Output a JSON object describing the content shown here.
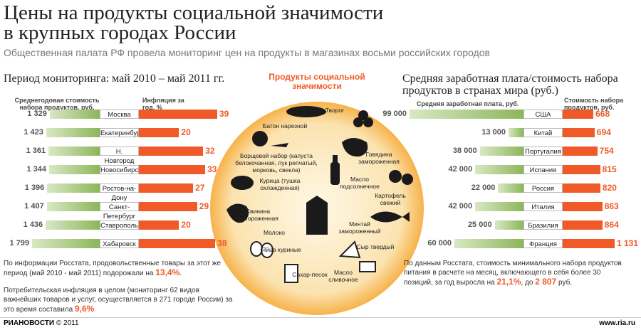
{
  "header": {
    "title_lines": [
      "Цены на продукты социальной значимости",
      "в крупных городах России"
    ],
    "subtitle": "Общественная палата РФ провела мониторинг цен на продукты в магазинах восьми российских городов"
  },
  "chart_data": [
    {
      "type": "bar",
      "title": "Период мониторинга: май 2010 – май 2011 гг.",
      "categories": [
        "Москва",
        "Екатеринбург",
        "Н. Новгород",
        "Новосибирск",
        "Ростов-на-Дону",
        "Санкт-Петербург",
        "Ставрополь",
        "Хабаровск"
      ],
      "series": [
        {
          "name": "Среднегодовая стоимость набора продуктов, руб.",
          "color": "#8cb65a",
          "values": [
            1329,
            1423,
            1361,
            1344,
            1396,
            1407,
            1436,
            1799
          ],
          "value_labels": [
            "1 329",
            "1 423",
            "1 361",
            "1 344",
            "1 396",
            "1 407",
            "1 436",
            "1 799"
          ]
        },
        {
          "name": "Инфляция за год, %",
          "color": "#f05a28",
          "values": [
            39,
            20,
            32,
            33,
            27,
            29,
            20,
            38
          ]
        }
      ]
    },
    {
      "type": "bar",
      "title": "Средняя заработная плата/стоимость набора продуктов в странах мира (руб.)",
      "categories": [
        "США",
        "Китай",
        "Португалия",
        "Испания",
        "Россия",
        "Италия",
        "Бразилия",
        "Франция"
      ],
      "series": [
        {
          "name": "Средняя заработная плата, руб.",
          "color": "#8cb65a",
          "values": [
            99000,
            13000,
            38000,
            42000,
            22000,
            42000,
            25000,
            60000
          ],
          "value_labels": [
            "99 000",
            "13 000",
            "38 000",
            "42 000",
            "22 000",
            "42 000",
            "25 000",
            "60 000"
          ]
        },
        {
          "name": "Стоимость набора продуктов, руб.",
          "color": "#f05a28",
          "values": [
            668,
            694,
            754,
            815,
            820,
            863,
            864,
            1131
          ],
          "value_labels": [
            "668",
            "694",
            "754",
            "815",
            "820",
            "863",
            "864",
            "1 131"
          ]
        }
      ]
    }
  ],
  "products": {
    "title": "Продукты социальной значимости",
    "items": [
      "Батон нарезной",
      "Творог",
      "Говядина замороженная",
      "Борщевой набор (капуста белокочанная, лук репчатый, морковь, свекла)",
      "Масло подсолнечное",
      "Курица (тушка охлажденная)",
      "Картофель свежий",
      "Свинина замороженная",
      "Молоко",
      "Минтай замороженный",
      "Яйца куриные",
      "Сыр твердый",
      "Сахар-песок",
      "Масло сливочное"
    ]
  },
  "notes": {
    "left": [
      {
        "text": "По информации Росстата, продовольственные товары за этот же период (май 2010 - май 2011) подорожали на",
        "highlight": "13,4%",
        "end": "."
      },
      {
        "text": "Потребительская инфляция в целом (мониторинг 62 видов важнейших товаров и услуг, осуществляется в 271 городе России) за это время составила",
        "highlight": "9,6%"
      }
    ],
    "right": {
      "text": "По данным Росстата, стоимость минимального набора продуктов питания в расчете на месяц, включающего в себя более 30 позиций, за год выросла на",
      "highlight": "21,1%",
      "middle": ", до",
      "highlight2": "2 807",
      "end": "руб."
    }
  },
  "footer": {
    "brand": "РИАНОВОСТИ",
    "copyright": "© 2011",
    "url": "www.ria.ru"
  }
}
